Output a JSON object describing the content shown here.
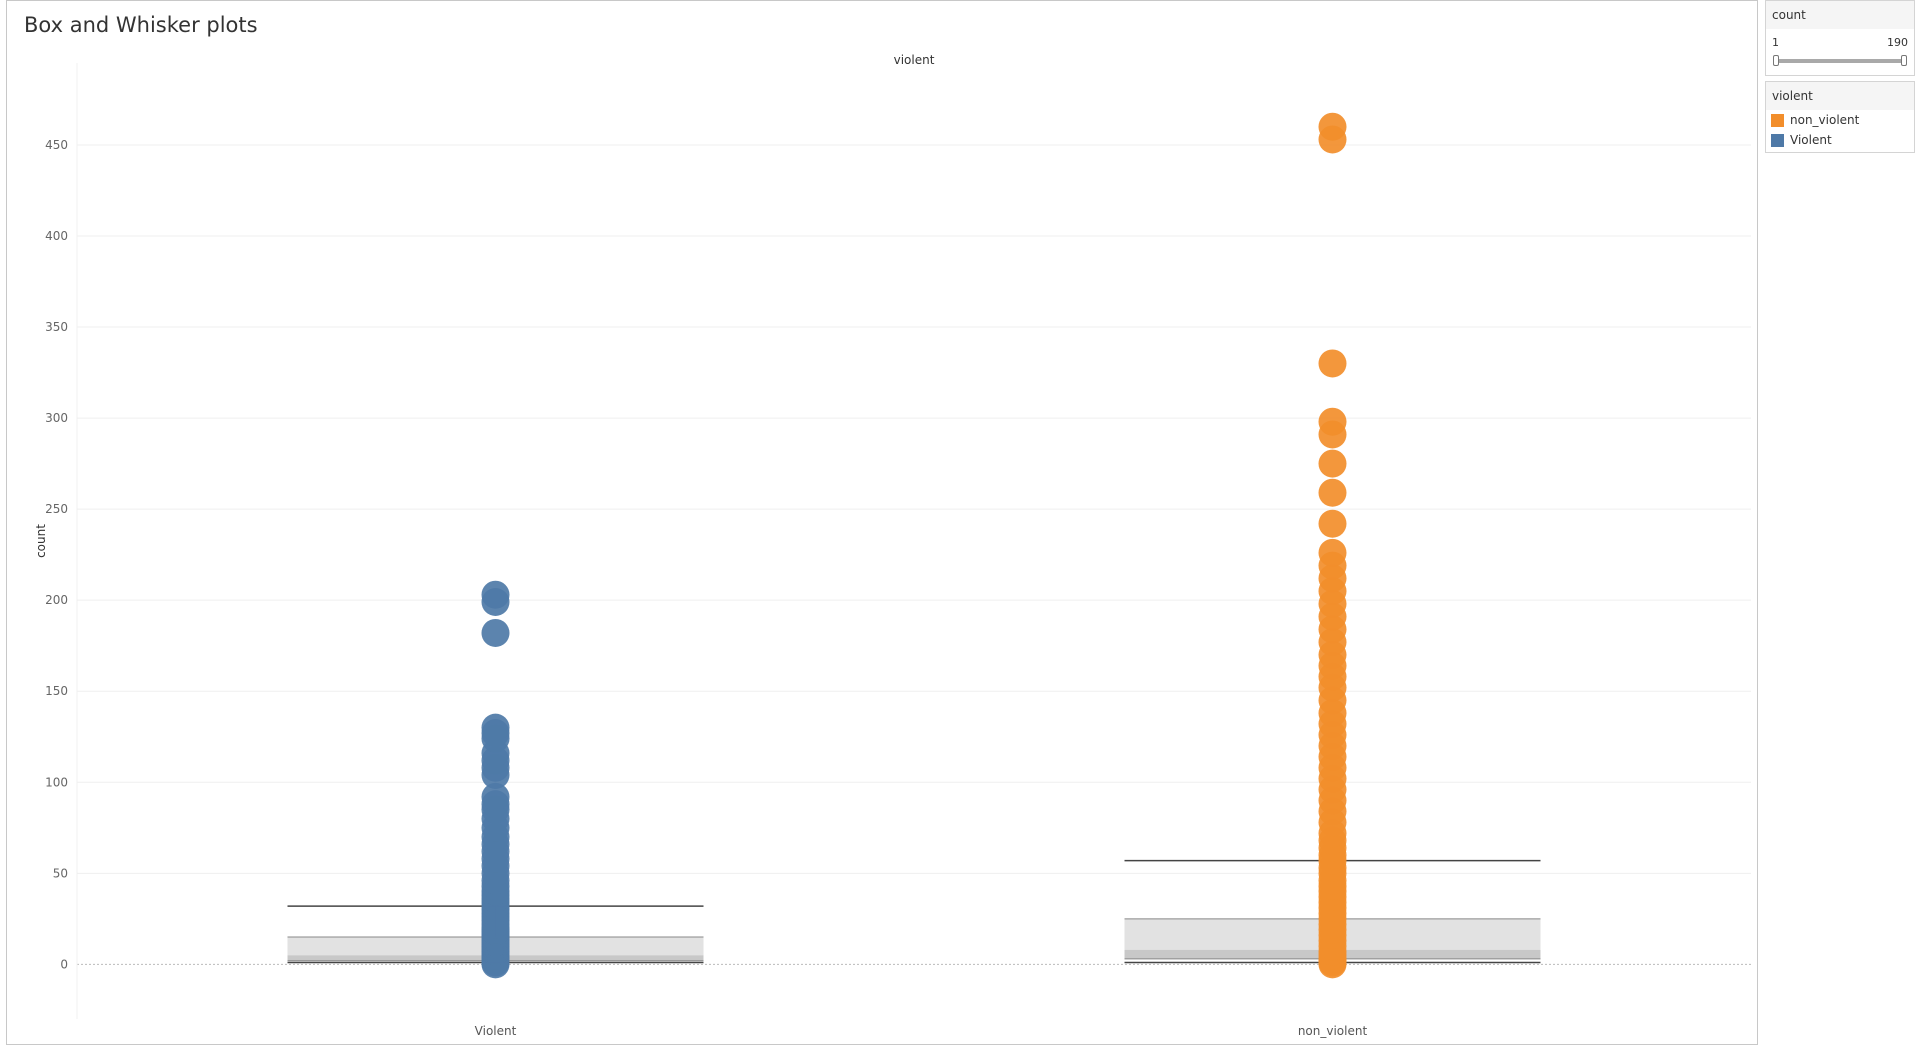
{
  "title": "Box and Whisker plots",
  "filter": {
    "title": "count",
    "min_label": "1",
    "max_label": "190",
    "range_fraction": [
      0,
      1
    ]
  },
  "legend": {
    "title": "violent",
    "items": [
      {
        "label": "non_violent",
        "color": "#f28e2b"
      },
      {
        "label": "Violent",
        "color": "#4e79a7"
      }
    ]
  },
  "chart_data": {
    "type": "box",
    "title": "Box and Whisker plots",
    "header": "violent",
    "xlabel": "",
    "ylabel": "count",
    "categories": [
      "Violent",
      "non_violent"
    ],
    "ylim": [
      -30,
      495
    ],
    "yticks": [
      0,
      50,
      100,
      150,
      200,
      250,
      300,
      350,
      400,
      450
    ],
    "grid": true,
    "legend_position": "right",
    "series": [
      {
        "name": "Violent",
        "color": "#4e79a7",
        "box": {
          "whisker_low": 1,
          "q1": 2,
          "median": 5,
          "q3": 15,
          "whisker_high": 32
        },
        "points": [
          0,
          1,
          2,
          3,
          4,
          5,
          6,
          7,
          8,
          9,
          10,
          11,
          12,
          13,
          14,
          15,
          16,
          17,
          18,
          19,
          20,
          22,
          24,
          26,
          28,
          30,
          32,
          34,
          36,
          38,
          40,
          43,
          46,
          50,
          54,
          58,
          62,
          66,
          70,
          75,
          80,
          85,
          88,
          92,
          104,
          108,
          112,
          116,
          124,
          127,
          130,
          182,
          199,
          203
        ]
      },
      {
        "name": "non_violent",
        "color": "#f28e2b",
        "box": {
          "whisker_low": 1,
          "q1": 3,
          "median": 8,
          "q3": 25,
          "whisker_high": 57
        },
        "points": [
          0,
          1,
          2,
          3,
          5,
          7,
          10,
          13,
          16,
          19,
          22,
          25,
          28,
          31,
          34,
          37,
          40,
          43,
          46,
          50,
          53,
          57,
          60,
          64,
          68,
          72,
          78,
          84,
          90,
          96,
          102,
          108,
          114,
          120,
          126,
          132,
          138,
          145,
          152,
          158,
          164,
          170,
          177,
          184,
          191,
          198,
          205,
          212,
          219,
          226,
          242,
          259,
          275,
          291,
          298,
          330,
          453,
          460
        ]
      }
    ]
  }
}
